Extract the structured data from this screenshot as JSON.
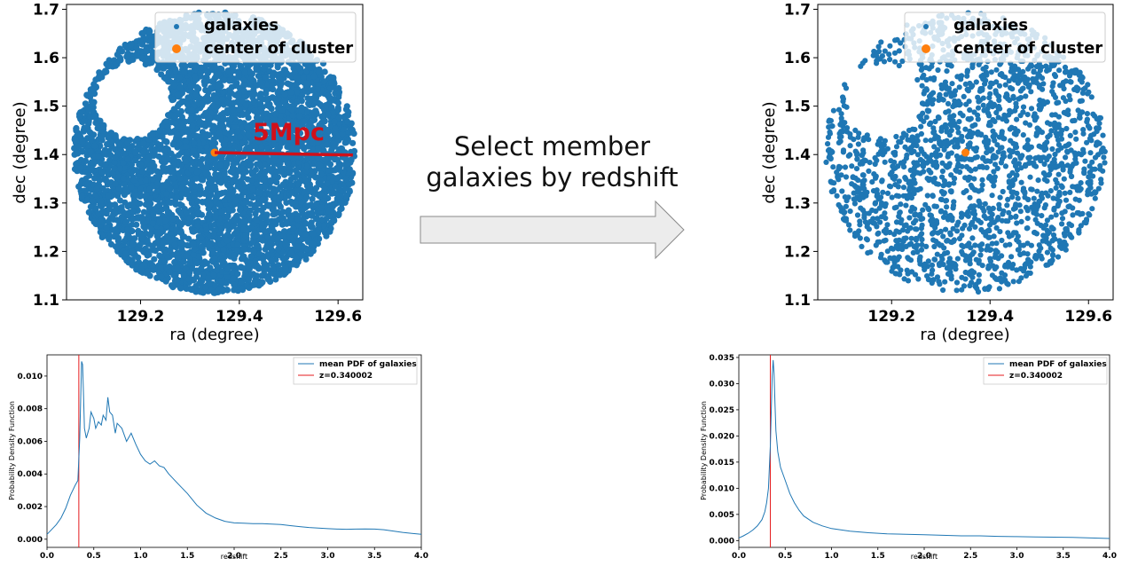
{
  "colors": {
    "galaxies": "#1f77b4",
    "center": "#ff7f0e",
    "redshift_line": "#e41a1c",
    "annotation": "#d0101a",
    "pdf_line": "#1f77b4",
    "arrow_fill": "#ececec",
    "arrow_stroke": "#8a8a8a"
  },
  "arrow": {
    "label_line1": "Select member",
    "label_line2": "galaxies by redshift",
    "icon": "right-arrow-icon"
  },
  "chart_data": [
    {
      "type": "scatter",
      "xlabel": "ra (degree)",
      "ylabel": "dec (degree)",
      "xlim": [
        129.05,
        129.65
      ],
      "ylim": [
        1.1,
        1.71
      ],
      "xticks": [
        129.2,
        129.4,
        129.6
      ],
      "xtick_labels": [
        "129.2",
        "129.4",
        "129.6"
      ],
      "yticks": [
        1.1,
        1.2,
        1.3,
        1.4,
        1.5,
        1.6,
        1.7
      ],
      "ytick_labels": [
        "1.1",
        "1.2",
        "1.3",
        "1.4",
        "1.5",
        "1.6",
        "1.7"
      ],
      "legend": [
        "galaxies",
        "center of cluster"
      ],
      "legend_position": "top-right",
      "center": {
        "ra": 129.35,
        "dec": 1.404
      },
      "field_radius_deg": 0.285,
      "annotation": {
        "text": "5Mpc",
        "line_from": [
          129.35,
          1.404
        ],
        "line_to": [
          129.63,
          1.399
        ]
      },
      "density": "dense"
    },
    {
      "type": "scatter",
      "xlabel": "ra (degree)",
      "ylabel": "dec (degree)",
      "xlim": [
        129.05,
        129.65
      ],
      "ylim": [
        1.1,
        1.71
      ],
      "xticks": [
        129.2,
        129.4,
        129.6
      ],
      "xtick_labels": [
        "129.2",
        "129.4",
        "129.6"
      ],
      "yticks": [
        1.1,
        1.2,
        1.3,
        1.4,
        1.5,
        1.6,
        1.7
      ],
      "ytick_labels": [
        "1.1",
        "1.2",
        "1.3",
        "1.4",
        "1.5",
        "1.6",
        "1.7"
      ],
      "legend": [
        "galaxies",
        "center of cluster"
      ],
      "legend_position": "top-right",
      "center": {
        "ra": 129.35,
        "dec": 1.404
      },
      "field_radius_deg": 0.285,
      "density": "sparse"
    },
    {
      "type": "line",
      "xlabel": "redshift",
      "ylabel": "Probability Density Function",
      "xlim": [
        0,
        4.0
      ],
      "ylim": [
        -0.0005,
        0.0113
      ],
      "xticks": [
        0,
        0.5,
        1.0,
        1.5,
        2.0,
        2.5,
        3.0,
        3.5,
        4.0
      ],
      "xtick_labels": [
        "0.0",
        "0.5",
        "1.0",
        "1.5",
        "2.0",
        "2.5",
        "3.0",
        "3.5",
        "4.0"
      ],
      "yticks": [
        0,
        0.002,
        0.004,
        0.006,
        0.008,
        0.01
      ],
      "ytick_labels": [
        "0.000",
        "0.002",
        "0.004",
        "0.006",
        "0.008",
        "0.010"
      ],
      "legend": [
        "mean PDF of galaxies",
        "z=0.340002"
      ],
      "legend_position": "top-right",
      "vline": 0.340002,
      "series": [
        {
          "name": "mean PDF of galaxies",
          "x": [
            0,
            0.05,
            0.1,
            0.15,
            0.2,
            0.25,
            0.3,
            0.33,
            0.35,
            0.37,
            0.38,
            0.39,
            0.4,
            0.42,
            0.45,
            0.47,
            0.5,
            0.52,
            0.55,
            0.58,
            0.6,
            0.63,
            0.65,
            0.67,
            0.7,
            0.73,
            0.75,
            0.8,
            0.85,
            0.9,
            0.95,
            1.0,
            1.05,
            1.1,
            1.15,
            1.2,
            1.25,
            1.3,
            1.4,
            1.5,
            1.6,
            1.7,
            1.8,
            1.9,
            2.0,
            2.1,
            2.2,
            2.3,
            2.4,
            2.5,
            2.6,
            2.7,
            2.8,
            2.9,
            3.0,
            3.1,
            3.2,
            3.3,
            3.4,
            3.5,
            3.6,
            3.7,
            3.8,
            3.9,
            4.0
          ],
          "y": [
            0.0003,
            0.0006,
            0.0009,
            0.0013,
            0.0019,
            0.0027,
            0.0033,
            0.0036,
            0.0062,
            0.0109,
            0.0107,
            0.009,
            0.0068,
            0.0062,
            0.0068,
            0.0078,
            0.0074,
            0.0068,
            0.0072,
            0.007,
            0.0076,
            0.0073,
            0.0087,
            0.0078,
            0.0076,
            0.0065,
            0.0071,
            0.0068,
            0.006,
            0.0065,
            0.0058,
            0.0052,
            0.0048,
            0.0046,
            0.0048,
            0.0045,
            0.0044,
            0.004,
            0.0034,
            0.0028,
            0.0021,
            0.0016,
            0.0013,
            0.0011,
            0.001,
            0.00098,
            0.00096,
            0.00095,
            0.00093,
            0.0009,
            0.00083,
            0.00077,
            0.00072,
            0.00068,
            0.00065,
            0.00062,
            0.00061,
            0.00062,
            0.00063,
            0.00062,
            0.00058,
            0.0005,
            0.00042,
            0.00036,
            0.0003
          ]
        }
      ]
    },
    {
      "type": "line",
      "xlabel": "redshift",
      "ylabel": "Probability Density Function",
      "xlim": [
        0,
        4.0
      ],
      "ylim": [
        -0.0013,
        0.0355
      ],
      "xticks": [
        0,
        0.5,
        1.0,
        1.5,
        2.0,
        2.5,
        3.0,
        3.5,
        4.0
      ],
      "xtick_labels": [
        "0.0",
        "0.5",
        "1.0",
        "1.5",
        "2.0",
        "2.5",
        "3.0",
        "3.5",
        "4.0"
      ],
      "yticks": [
        0,
        0.005,
        0.01,
        0.015,
        0.02,
        0.025,
        0.03,
        0.035
      ],
      "ytick_labels": [
        "0.000",
        "0.005",
        "0.010",
        "0.015",
        "0.020",
        "0.025",
        "0.030",
        "0.035"
      ],
      "legend": [
        "mean PDF of galaxies",
        "z=0.340002"
      ],
      "legend_position": "top-right",
      "vline": 0.340002,
      "series": [
        {
          "name": "mean PDF of galaxies",
          "x": [
            0,
            0.05,
            0.1,
            0.15,
            0.2,
            0.25,
            0.28,
            0.3,
            0.32,
            0.34,
            0.36,
            0.37,
            0.38,
            0.39,
            0.4,
            0.42,
            0.45,
            0.5,
            0.55,
            0.6,
            0.65,
            0.7,
            0.8,
            0.9,
            1.0,
            1.2,
            1.4,
            1.6,
            1.8,
            2.0,
            2.2,
            2.4,
            2.6,
            2.8,
            3.0,
            3.2,
            3.4,
            3.6,
            3.8,
            4.0
          ],
          "y": [
            0.0005,
            0.0009,
            0.0014,
            0.002,
            0.0028,
            0.004,
            0.0055,
            0.0072,
            0.01,
            0.018,
            0.0315,
            0.0345,
            0.032,
            0.026,
            0.021,
            0.017,
            0.014,
            0.0115,
            0.009,
            0.0072,
            0.0058,
            0.0047,
            0.0035,
            0.0028,
            0.0023,
            0.0018,
            0.0015,
            0.0013,
            0.0012,
            0.0011,
            0.001,
            0.0009,
            0.0009,
            0.0008,
            0.00075,
            0.0007,
            0.00065,
            0.0006,
            0.0005,
            0.0004
          ]
        }
      ]
    }
  ]
}
